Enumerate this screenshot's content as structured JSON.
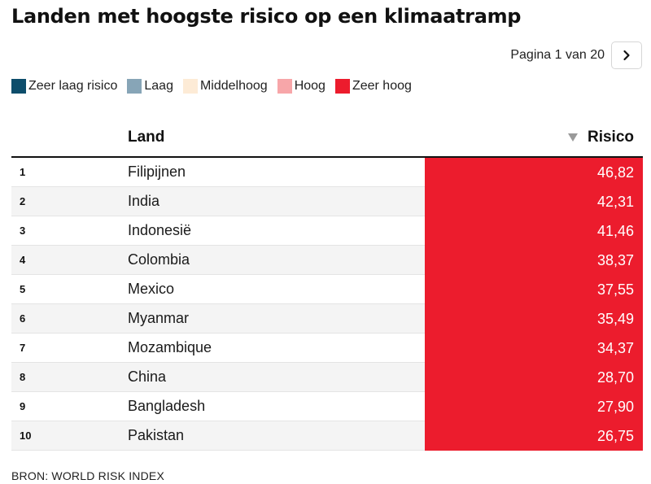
{
  "title": "Landen met hoogste risico op een klimaatramp",
  "pager": {
    "text": "Pagina 1 van 20",
    "next_icon": "chevron-right-icon"
  },
  "legend": [
    {
      "label": "Zeer laag risico",
      "color": "#0d4d6b"
    },
    {
      "label": "Laag",
      "color": "#87a5b7"
    },
    {
      "label": "Middelhoog",
      "color": "#fdebd6"
    },
    {
      "label": "Hoog",
      "color": "#f7a6a9"
    },
    {
      "label": "Zeer hoog",
      "color": "#ec1c2d"
    }
  ],
  "source": "BRON: WORLD RISK INDEX",
  "chart_data": {
    "type": "table",
    "columns": [
      "",
      "Land",
      "Risico"
    ],
    "sort": {
      "column": "Risico",
      "direction": "descending"
    },
    "rows": [
      {
        "rank": "1",
        "land": "Filipijnen",
        "risico": "46,82",
        "category": "Zeer hoog"
      },
      {
        "rank": "2",
        "land": "India",
        "risico": "42,31",
        "category": "Zeer hoog"
      },
      {
        "rank": "3",
        "land": "Indonesië",
        "risico": "41,46",
        "category": "Zeer hoog"
      },
      {
        "rank": "4",
        "land": "Colombia",
        "risico": "38,37",
        "category": "Zeer hoog"
      },
      {
        "rank": "5",
        "land": "Mexico",
        "risico": "37,55",
        "category": "Zeer hoog"
      },
      {
        "rank": "6",
        "land": "Myanmar",
        "risico": "35,49",
        "category": "Zeer hoog"
      },
      {
        "rank": "7",
        "land": "Mozambique",
        "risico": "34,37",
        "category": "Zeer hoog"
      },
      {
        "rank": "8",
        "land": "China",
        "risico": "28,70",
        "category": "Zeer hoog"
      },
      {
        "rank": "9",
        "land": "Bangladesh",
        "risico": "27,90",
        "category": "Zeer hoog"
      },
      {
        "rank": "10",
        "land": "Pakistan",
        "risico": "26,75",
        "category": "Zeer hoog"
      }
    ]
  }
}
